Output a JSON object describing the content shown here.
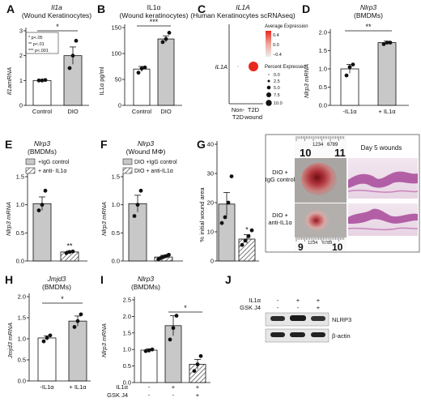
{
  "panels": {
    "A": {
      "letter": "A",
      "title_gene": "Il1a",
      "title_sub": "(Wound Keratinocytes)",
      "ylabel": "Il1amRNA",
      "yticks": [
        "0",
        "1",
        "2",
        "3"
      ],
      "categories": [
        "Control",
        "DIO"
      ],
      "sig": "*",
      "legend": [
        "* p<.05",
        "** p<.01",
        "*** p<.001"
      ]
    },
    "B": {
      "letter": "B",
      "title": "IL1α",
      "title_sub": "(Wound keratinocytes)",
      "ylabel": "IL1α pg/ml",
      "yticks": [
        "0",
        "50",
        "100",
        "150"
      ],
      "categories": [
        "Control",
        "DIO"
      ],
      "sig": "***"
    },
    "C": {
      "letter": "C",
      "title_gene": "IL1A",
      "title_sub": "(Human Keratinocytes scRNAseq)",
      "ylabel": "IL1A",
      "xcat1": [
        "Non-",
        "T2D"
      ],
      "xcat2": [
        "T2D",
        "wound"
      ],
      "legend_title1": "Average Expression",
      "cbar_ticks": [
        "0.4",
        "0.2",
        "0.0",
        "−0.2",
        "−0.4"
      ],
      "legend_title2": "Percent Expressed",
      "size_ticks": [
        "0.0",
        "2.5",
        "5.0",
        "7.5",
        "10.0"
      ]
    },
    "D": {
      "letter": "D",
      "title_gene": "Nlrp3",
      "title_sub": "(BMDMs)",
      "ylabel": "Nlrp3 mRNA",
      "yticks": [
        "0.0",
        "0.5",
        "1.0",
        "1.5",
        "2.0"
      ],
      "categories": [
        "-IL1α",
        "+ IL1α"
      ],
      "sig": "**"
    },
    "E": {
      "letter": "E",
      "title_gene": "Nlrp3",
      "title_sub": "(BMDMs)",
      "ylabel": "Nlrp3 mRNA",
      "yticks": [
        "0.0",
        "0.5",
        "1.0",
        "1.5"
      ],
      "legend": [
        "+IgG control",
        "+ anti- IL1α"
      ],
      "sig": "**"
    },
    "F": {
      "letter": "F",
      "title_gene": "Nlrp3",
      "title_sub": "(Wound MΦ)",
      "ylabel": "Nlrp3 mRNA",
      "yticks": [
        "0.0",
        "0.5",
        "1.0",
        "1.5"
      ],
      "legend": [
        "DIO +IgG control",
        "DIO + anti-IL1α"
      ],
      "sig": "*"
    },
    "G": {
      "letter": "G",
      "ylabel": "% initial wound area",
      "yticks": [
        "0",
        "10",
        "20",
        "30",
        "40"
      ],
      "sig": "*",
      "photo_title": "Day 5 wounds",
      "row1": [
        "DIO +",
        "IgG control"
      ],
      "row2": [
        "DIO +",
        "anti-IL1α"
      ],
      "ruler_top": [
        "10",
        "1234",
        "6789",
        "11"
      ],
      "ruler_bottom": [
        "9",
        "1234",
        "6789",
        "10"
      ]
    },
    "H": {
      "letter": "H",
      "title_gene": "Jmjd3",
      "title_sub": "(BMDMs)",
      "ylabel": "Jmjd3 mRNA",
      "yticks": [
        "0.0",
        "0.5",
        "1.0",
        "1.5",
        "2.0"
      ],
      "categories": [
        "-IL1α",
        "+ IL1α"
      ],
      "sig": "*"
    },
    "I": {
      "letter": "I",
      "title_gene": "Nlrp3",
      "title_sub": "(BMDMs)",
      "ylabel": "Nlrp3 mRNA",
      "yticks": [
        "0.0",
        "0.5",
        "1.0",
        "1.5",
        "2.0",
        "2.5"
      ],
      "row1_label": "IL1α",
      "row2_label": "GSK J4",
      "row1": [
        "-",
        "+",
        "+"
      ],
      "row2": [
        "-",
        "-",
        "+"
      ],
      "sig": "*"
    },
    "J": {
      "letter": "J",
      "row1_label": "IL1α",
      "row2_label": "GSK J4",
      "row1": [
        "-",
        "+",
        "+"
      ],
      "row2": [
        "-",
        "-",
        "+"
      ],
      "band1": "NLRP3",
      "band2": "β-actin"
    }
  },
  "chart_data": [
    {
      "type": "bar",
      "panel": "A",
      "categories": [
        "Control",
        "DIO"
      ],
      "values": [
        1.0,
        2.0
      ],
      "errors": [
        0.03,
        0.35
      ],
      "points": [
        [
          1.0,
          1.0,
          1.02
        ],
        [
          1.5,
          2.0,
          2.6
        ]
      ],
      "ylim": [
        0,
        3
      ]
    },
    {
      "type": "bar",
      "panel": "B",
      "categories": [
        "Control",
        "DIO"
      ],
      "values": [
        70,
        128
      ],
      "errors": [
        5,
        6
      ],
      "points": [
        [
          63,
          71,
          73
        ],
        [
          122,
          128,
          140
        ]
      ],
      "ylim": [
        0,
        150
      ]
    },
    {
      "type": "scatter",
      "panel": "C",
      "categories": [
        "Non-T2D",
        "T2D wound"
      ],
      "gene": "IL1A",
      "avg_expression": [
        -0.5,
        0.4
      ],
      "percent_expressed": [
        0.3,
        7.0
      ]
    },
    {
      "type": "bar",
      "panel": "D",
      "categories": [
        "-IL1α",
        "+ IL1α"
      ],
      "values": [
        1.0,
        1.72
      ],
      "errors": [
        0.12,
        0.04
      ],
      "points": [
        [
          0.82,
          1.05,
          1.12
        ],
        [
          1.68,
          1.72,
          1.72
        ]
      ],
      "ylim": [
        0,
        2.0
      ]
    },
    {
      "type": "bar",
      "panel": "E",
      "categories": [
        "+IgG control",
        "+ anti- IL1α"
      ],
      "values": [
        1.02,
        0.16
      ],
      "errors": [
        0.12,
        0.02
      ],
      "points": [
        [
          0.9,
          1.0,
          1.25
        ],
        [
          0.14,
          0.16,
          0.17
        ]
      ],
      "ylim": [
        0,
        1.5
      ]
    },
    {
      "type": "bar",
      "panel": "F",
      "categories": [
        "DIO +IgG control",
        "DIO + anti-IL1α"
      ],
      "values": [
        1.02,
        0.07
      ],
      "errors": [
        0.15,
        0.03
      ],
      "points": [
        [
          0.8,
          1.0,
          1.25
        ],
        [
          0.03,
          0.05,
          0.07,
          0.08,
          0.09,
          0.11
        ]
      ],
      "ylim": [
        0,
        1.5
      ]
    },
    {
      "type": "bar",
      "panel": "G",
      "categories": [
        "DIO + IgG control",
        "DIO + anti-IL1α"
      ],
      "values": [
        19.5,
        7.5
      ],
      "errors": [
        4.0,
        1.5
      ],
      "points": [
        [
          13,
          15,
          20,
          29
        ],
        [
          5.5,
          7,
          8.5,
          10.5
        ]
      ],
      "ylim": [
        0,
        40
      ]
    },
    {
      "type": "bar",
      "panel": "H",
      "categories": [
        "-IL1α",
        "+ IL1α"
      ],
      "values": [
        1.02,
        1.42
      ],
      "errors": [
        0.05,
        0.12
      ],
      "points": [
        [
          0.94,
          1.02,
          1.08
        ],
        [
          1.28,
          1.42,
          1.58
        ]
      ],
      "ylim": [
        0,
        2.0
      ]
    },
    {
      "type": "bar",
      "panel": "I",
      "categories": [
        "- / -",
        "+ / -",
        "+ / +"
      ],
      "values": [
        0.98,
        1.72,
        0.55
      ],
      "errors": [
        0.04,
        0.3,
        0.15
      ],
      "points": [
        [
          0.95,
          0.97,
          1.0
        ],
        [
          1.3,
          1.65,
          2.02
        ],
        [
          0.35,
          0.55,
          0.8
        ]
      ],
      "ylim": [
        0,
        2.5
      ]
    }
  ]
}
